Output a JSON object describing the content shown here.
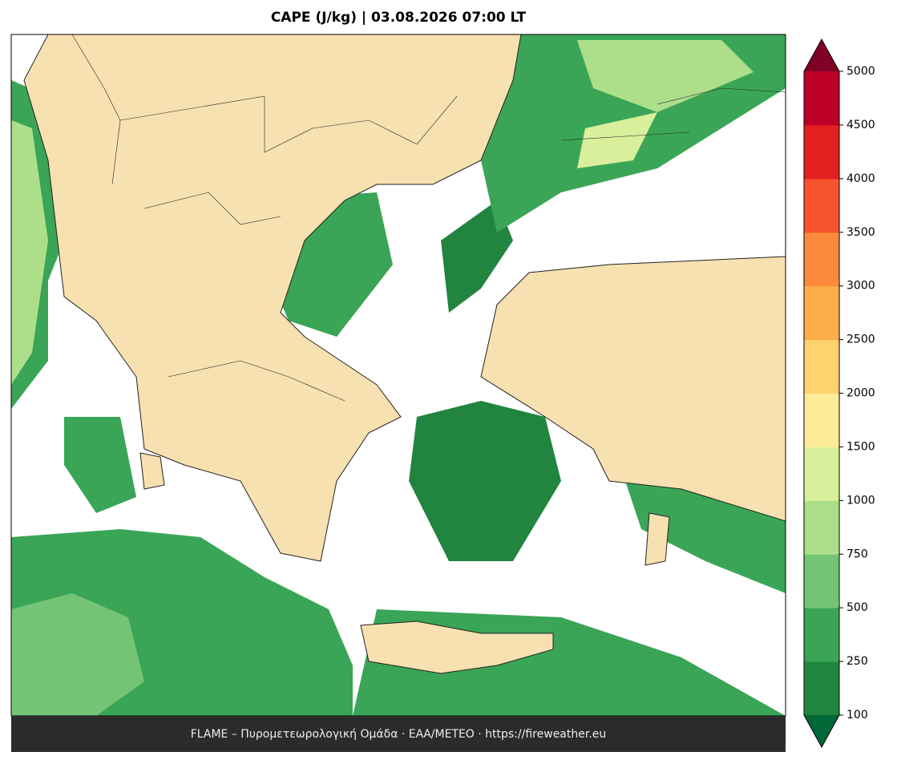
{
  "title": "CAPE (J/kg)  |  03.08.2026 07:00 LT",
  "colorbar": {
    "levels": [
      100,
      250,
      500,
      750,
      1000,
      1500,
      2000,
      2500,
      3000,
      3500,
      4000,
      4500,
      5000
    ],
    "colors": [
      "#22853f",
      "#3aa556",
      "#74c476",
      "#addf8a",
      "#d9ef9b",
      "#feeb9a",
      "#fed26e",
      "#fdae4b",
      "#fd8a3c",
      "#f7532e",
      "#e41f1f",
      "#bd0026"
    ],
    "under_color": "#006837",
    "over_color": "#800026"
  },
  "footer": "FLAME – Πυρομετεωρολογική Ομάδα · ΕΑΑ/METEO · https://fireweather.eu"
}
